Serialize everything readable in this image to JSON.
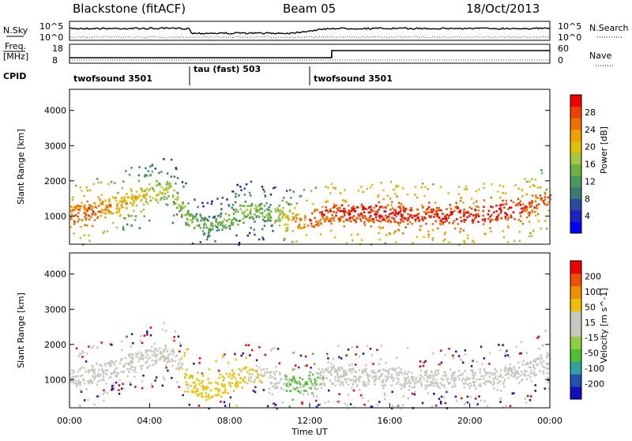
{
  "header": {
    "station": "Blackstone (fitACF)",
    "beam": "Beam 05",
    "date": "18/Oct/2013"
  },
  "summary": {
    "nsky_label": "N.Sky",
    "nsearch_label": "N.Search",
    "noise_ticks": [
      "10^5",
      "10^0"
    ],
    "freq_label_1": "Freq.",
    "freq_label_2": "[MHz]",
    "freq_ticks": [
      "18",
      "8"
    ],
    "nave_label": "Nave",
    "nave_ticks": [
      "60",
      "0"
    ],
    "cpid_label": "CPID"
  },
  "cpid_modes": [
    {
      "name": "twofsound 3501",
      "start_hour": 0,
      "end_hour": 6
    },
    {
      "name": "tau (fast) 503",
      "start_hour": 6,
      "end_hour": 12
    },
    {
      "name": "twofsound 3501",
      "start_hour": 12,
      "end_hour": 24
    }
  ],
  "colorbars": {
    "power": {
      "label": "Power [dB]",
      "ticks": [
        "28",
        "24",
        "20",
        "16",
        "12",
        "8",
        "4"
      ],
      "colors": [
        "#0000ff",
        "#2020c0",
        "#2a4aa0",
        "#3a7a70",
        "#4a9a60",
        "#70b040",
        "#a0c840",
        "#e0c000",
        "#f0a000",
        "#f07000",
        "#f04000",
        "#f00000"
      ]
    },
    "velocity": {
      "label": "Velocity [m s^-1]",
      "ticks": [
        "200",
        "100",
        "50",
        "15",
        "-15",
        "-50",
        "-100",
        "-200"
      ],
      "colors": [
        "#1010c0",
        "#2050b0",
        "#30a0a0",
        "#50c030",
        "#90d040",
        "#c8c8c0",
        "#c8c8c0",
        "#f0c000",
        "#f09000",
        "#f05000",
        "#f00000"
      ]
    }
  },
  "chart_data": [
    {
      "type": "heatmap",
      "title": "Power",
      "ylabel": "Slant Range [km]",
      "yticks": [
        "1000",
        "2000",
        "3000",
        "4000"
      ],
      "ylim": [
        200,
        4600
      ],
      "xlim_hours": [
        0,
        24
      ],
      "band": {
        "x_hours": [
          0,
          1,
          2,
          3,
          4,
          5,
          6,
          7,
          8,
          9,
          10,
          11,
          12,
          13,
          14,
          15,
          16,
          17,
          18,
          19,
          20,
          21,
          22,
          23,
          24
        ],
        "center_km": [
          1050,
          1150,
          1300,
          1500,
          1650,
          1800,
          900,
          700,
          1000,
          1200,
          1100,
          900,
          900,
          1150,
          1100,
          1100,
          1100,
          1050,
          1050,
          1050,
          1050,
          1100,
          1150,
          1300,
          1600
        ],
        "power_db": [
          24,
          26,
          22,
          20,
          18,
          16,
          14,
          12,
          14,
          14,
          14,
          20,
          26,
          26,
          28,
          28,
          28,
          28,
          28,
          28,
          28,
          28,
          28,
          26,
          24
        ]
      }
    },
    {
      "type": "heatmap",
      "title": "Velocity",
      "ylabel": "Slant Range [km]",
      "xlabel": "Time UT",
      "yticks": [
        "1000",
        "2000",
        "3000",
        "4000"
      ],
      "xticks": [
        "00:00",
        "04:00",
        "08:00",
        "12:00",
        "16:00",
        "20:00",
        "00:00"
      ],
      "ylim": [
        200,
        4600
      ],
      "xlim_hours": [
        0,
        24
      ],
      "band": {
        "x_hours": [
          0,
          1,
          2,
          3,
          4,
          5,
          6,
          7,
          8,
          9,
          10,
          11,
          12,
          13,
          14,
          15,
          16,
          17,
          18,
          19,
          20,
          21,
          22,
          23,
          24
        ],
        "center_km": [
          1050,
          1150,
          1300,
          1500,
          1650,
          1800,
          900,
          700,
          1000,
          1200,
          1100,
          900,
          900,
          1150,
          1100,
          1100,
          1100,
          1050,
          1050,
          1050,
          1050,
          1100,
          1150,
          1300,
          1600
        ],
        "velocity_ms": [
          0,
          0,
          0,
          0,
          0,
          0,
          -60,
          -60,
          -60,
          -40,
          -20,
          40,
          40,
          0,
          0,
          0,
          0,
          0,
          0,
          0,
          0,
          0,
          0,
          0,
          0
        ]
      }
    }
  ]
}
